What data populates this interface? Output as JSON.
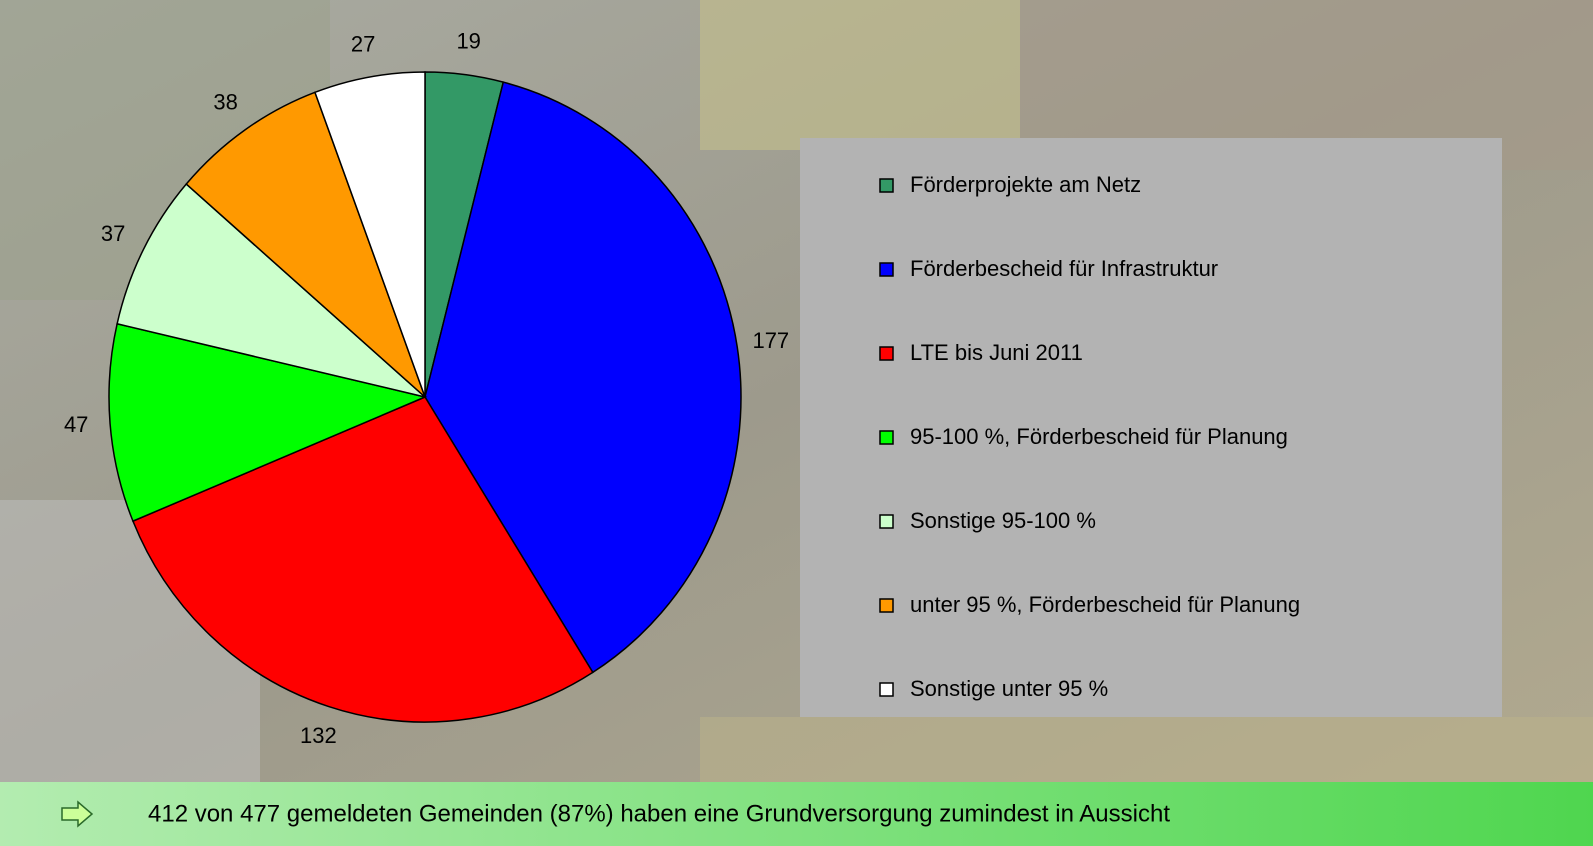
{
  "chart_data": {
    "type": "pie",
    "categories": [
      "Förderprojekte am Netz",
      "Förderbescheid für Infrastruktur",
      "LTE bis Juni 2011",
      "95-100 %, Förderbescheid für Planung",
      "Sonstige 95-100 %",
      "unter 95 %, Förderbescheid für Planung",
      "Sonstige unter 95 %"
    ],
    "values": [
      19,
      177,
      132,
      47,
      37,
      38,
      27
    ],
    "colors": [
      "#339966",
      "#0000ff",
      "#ff0000",
      "#00ff00",
      "#ccffcc",
      "#ff9900",
      "#ffffff"
    ],
    "legend": "right",
    "annotation": "412 von 477 gemeldeten Gemeinden (87%) haben eine Grundversorgung zumindest in Aussicht"
  }
}
